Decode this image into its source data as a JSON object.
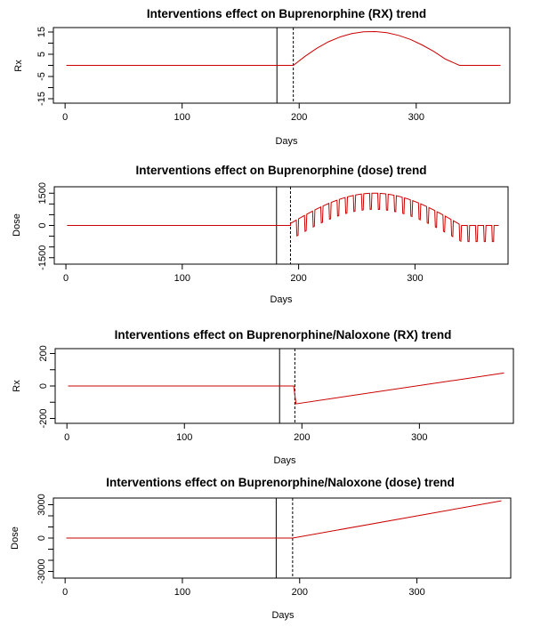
{
  "chart_data": [
    {
      "type": "line",
      "title": "Interventions effect on Buprenorphine (RX) trend",
      "xlabel": "Days",
      "ylabel": "Rx",
      "xlim": [
        -10,
        380
      ],
      "ylim": [
        -17,
        17
      ],
      "xticks": [
        0,
        100,
        200,
        300
      ],
      "yticks": [
        -15,
        -10,
        -5,
        0,
        5,
        10,
        15
      ],
      "ytick_labels": [
        "-15",
        "",
        "-5",
        "",
        "5",
        "",
        "15"
      ],
      "vlines": [
        {
          "x": 181,
          "style": "solid"
        },
        {
          "x": 195,
          "style": "dashed"
        }
      ],
      "series": [
        {
          "color": "#cc0000",
          "x": [
            1,
            195,
            205,
            215,
            225,
            235,
            245,
            255,
            265,
            275,
            285,
            295,
            305,
            315,
            325,
            337,
            372
          ],
          "y": [
            0,
            0,
            4.1,
            7.7,
            10.6,
            12.8,
            14.3,
            15.1,
            15.2,
            14.7,
            13.5,
            11.7,
            9.2,
            6.3,
            2.8,
            0,
            0
          ]
        }
      ]
    },
    {
      "type": "line",
      "title": "Interventions effect on Buprenorphine (dose) trend",
      "xlabel": "Days",
      "ylabel": "Dose",
      "xlim": [
        -10,
        380
      ],
      "ylim": [
        -1800,
        1800
      ],
      "xticks": [
        0,
        100,
        200,
        300
      ],
      "yticks": [
        -1500,
        -1000,
        -500,
        0,
        500,
        1000,
        1500
      ],
      "ytick_labels": [
        "-1500",
        "",
        "",
        "0",
        "",
        "",
        "1500"
      ],
      "vlines": [
        {
          "x": 181,
          "style": "solid"
        },
        {
          "x": 193,
          "style": "dashed"
        }
      ],
      "series": [
        {
          "color": "#cc0000",
          "x": [
            1,
            193,
            372
          ],
          "y": [
            0,
            0,
            0
          ],
          "envelope": {
            "start": 193,
            "end": 372,
            "period": 7,
            "peak_day": 265,
            "amplitude": 1500,
            "trough_offset": -750
          }
        }
      ]
    },
    {
      "type": "line",
      "title": "Interventions effect on Buprenorphine/Naloxone (RX) trend",
      "xlabel": "Days",
      "ylabel": "Rx",
      "xlim": [
        -10,
        380
      ],
      "ylim": [
        -230,
        230
      ],
      "xticks": [
        0,
        100,
        200,
        300
      ],
      "yticks": [
        -200,
        -100,
        0,
        100,
        200
      ],
      "ytick_labels": [
        "-200",
        "",
        "0",
        "",
        "200"
      ],
      "vlines": [
        {
          "x": 181,
          "style": "solid"
        },
        {
          "x": 194,
          "style": "dashed"
        }
      ],
      "series": [
        {
          "color": "#cc0000",
          "x": [
            1,
            193,
            195,
            372
          ],
          "y": [
            0,
            0,
            -110,
            80
          ]
        }
      ]
    },
    {
      "type": "line",
      "title": "Interventions effect on Buprenorphine/Naloxone (dose) trend",
      "xlabel": "Days",
      "ylabel": "Dose",
      "xlim": [
        -10,
        380
      ],
      "ylim": [
        -3600,
        3600
      ],
      "xticks": [
        0,
        100,
        200,
        300
      ],
      "yticks": [
        -3000,
        -2000,
        -1000,
        0,
        1000,
        2000,
        3000
      ],
      "ytick_labels": [
        "-3000",
        "",
        "",
        "0",
        "",
        "",
        "3000"
      ],
      "vlines": [
        {
          "x": 180,
          "style": "solid"
        },
        {
          "x": 194,
          "style": "dashed"
        }
      ],
      "series": [
        {
          "color": "#cc0000",
          "x": [
            1,
            194,
            372
          ],
          "y": [
            0,
            0,
            3350
          ]
        }
      ]
    }
  ]
}
